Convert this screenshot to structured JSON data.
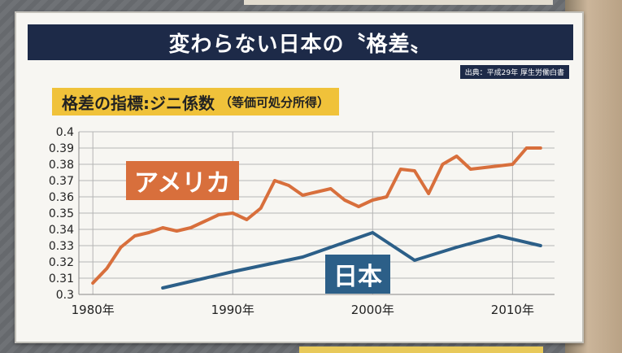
{
  "title": "変わらない日本の〝格差〟",
  "source": "出典：平成29年 厚生労働白書",
  "subtitle_main": "格差の指標:ジニ係数",
  "subtitle_note": "（等価可処分所得）",
  "colors": {
    "usa": "#d86f3c",
    "japan": "#2c5f88",
    "title_bg": "#1d2a48",
    "subtitle_bg": "#f0c23a"
  },
  "chart_data": {
    "type": "line",
    "title": "格差の指標:ジニ係数（等価可処分所得）",
    "xlabel": "",
    "ylabel": "",
    "xlim": [
      1979,
      2013
    ],
    "ylim": [
      0.3,
      0.4
    ],
    "grid": true,
    "y_ticks": [
      "0.4",
      "0.39",
      "0.38",
      "0.37",
      "0.36",
      "0.35",
      "0.34",
      "0.33",
      "0.32",
      "0.31",
      "0.3"
    ],
    "x_ticks": [
      {
        "value": 1980,
        "label": "1980年"
      },
      {
        "value": 1990,
        "label": "1990年"
      },
      {
        "value": 2000,
        "label": "2000年"
      },
      {
        "value": 2010,
        "label": "2010年"
      }
    ],
    "series": [
      {
        "name": "アメリカ",
        "color": "#d86f3c",
        "x": [
          1980,
          1981,
          1982,
          1983,
          1984,
          1985,
          1986,
          1987,
          1988,
          1989,
          1990,
          1991,
          1992,
          1993,
          1994,
          1995,
          1996,
          1997,
          1998,
          1999,
          2000,
          2001,
          2002,
          2003,
          2004,
          2005,
          2006,
          2007,
          2008,
          2009,
          2010,
          2011,
          2012
        ],
        "values": [
          0.307,
          0.316,
          0.329,
          0.336,
          0.338,
          0.341,
          0.339,
          0.341,
          0.345,
          0.349,
          0.35,
          0.346,
          0.353,
          0.37,
          0.367,
          0.361,
          0.363,
          0.365,
          0.358,
          0.354,
          0.358,
          0.36,
          0.377,
          0.376,
          0.362,
          0.38,
          0.385,
          0.377,
          0.378,
          0.379,
          0.38,
          0.39,
          0.39
        ]
      },
      {
        "name": "日本",
        "color": "#2c5f88",
        "x": [
          1985,
          1990,
          1995,
          2000,
          2003,
          2006,
          2009,
          2012
        ],
        "values": [
          0.304,
          0.314,
          0.323,
          0.338,
          0.321,
          0.329,
          0.336,
          0.33
        ]
      }
    ]
  }
}
